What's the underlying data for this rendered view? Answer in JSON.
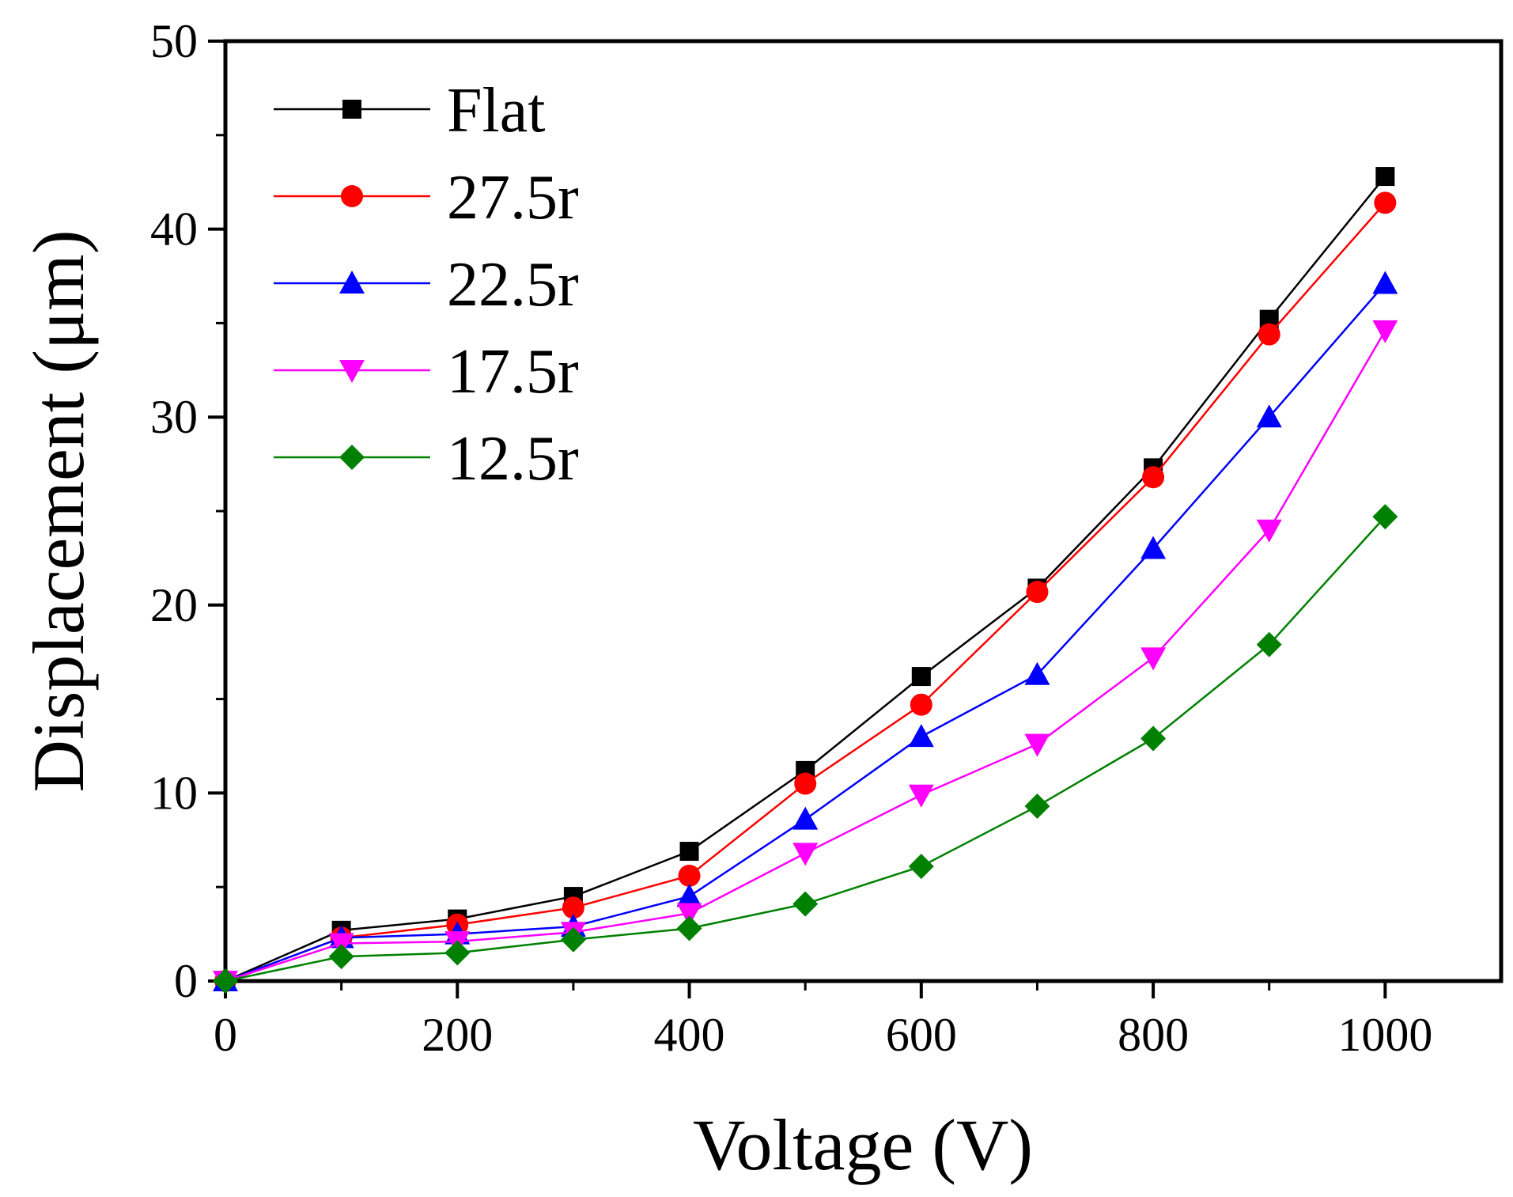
{
  "chart_data": {
    "type": "line",
    "title": "",
    "xlabel": "Voltage (V)",
    "ylabel": "Displacement (μm)",
    "xlim": [
      0,
      1100
    ],
    "ylim": [
      0,
      50
    ],
    "xticks": [
      "0",
      "200",
      "400",
      "600",
      "800",
      "1000"
    ],
    "yticks": [
      "0",
      "10",
      "20",
      "30",
      "40",
      "50"
    ],
    "grid": false,
    "legend_position": "top-left",
    "x": [
      0,
      100,
      200,
      300,
      400,
      500,
      600,
      700,
      800,
      900,
      1000
    ],
    "series": [
      {
        "name": "Flat",
        "color": "#000000",
        "marker": "square",
        "values": [
          0,
          2.7,
          3.3,
          4.5,
          6.9,
          11.2,
          16.2,
          20.9,
          27.3,
          35.2,
          42.8
        ]
      },
      {
        "name": "27.5r",
        "color": "#ff0000",
        "marker": "circle",
        "values": [
          0,
          2.3,
          3.0,
          3.9,
          5.6,
          10.5,
          14.7,
          20.7,
          26.8,
          34.4,
          41.4
        ]
      },
      {
        "name": "22.5r",
        "color": "#0000ff",
        "marker": "triangle-up",
        "values": [
          0,
          2.3,
          2.5,
          2.9,
          4.5,
          8.6,
          13.0,
          16.3,
          23.0,
          30.0,
          37.1
        ]
      },
      {
        "name": "17.5r",
        "color": "#ff00ff",
        "marker": "triangle-down",
        "values": [
          0,
          2.0,
          2.1,
          2.6,
          3.6,
          6.8,
          9.9,
          12.6,
          17.2,
          24.0,
          34.6
        ]
      },
      {
        "name": "12.5r",
        "color": "#008000",
        "marker": "diamond",
        "values": [
          0,
          1.3,
          1.5,
          2.2,
          2.8,
          4.1,
          6.1,
          9.3,
          12.9,
          17.9,
          24.7
        ]
      }
    ]
  }
}
